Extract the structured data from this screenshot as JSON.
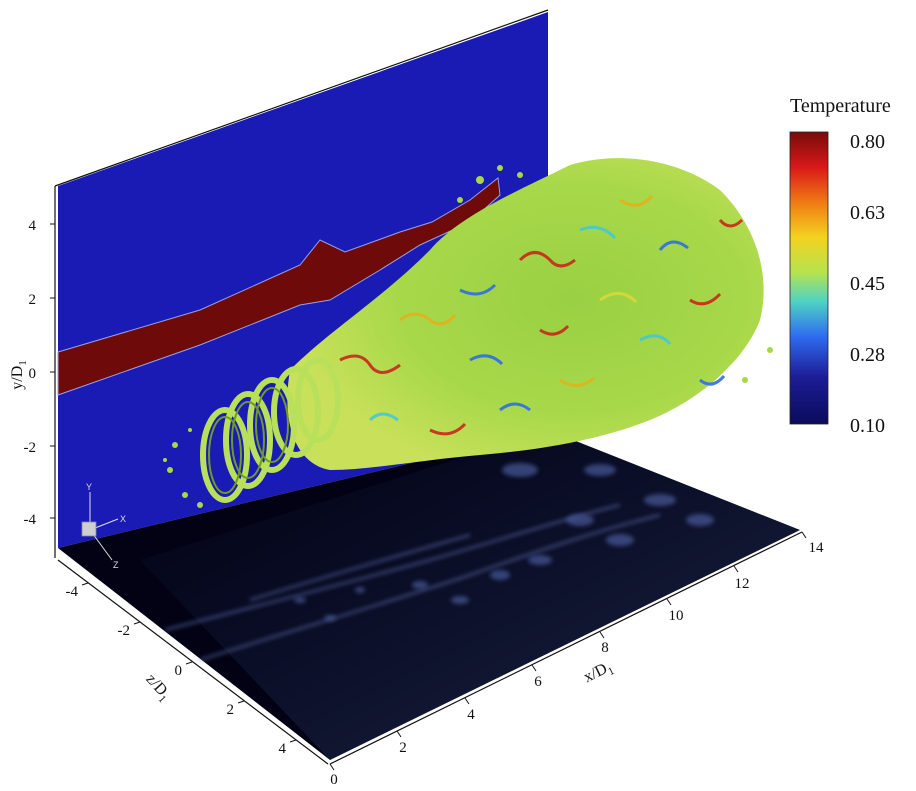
{
  "legend": {
    "title": "Temperature",
    "ticks": [
      "0.80",
      "0.63",
      "0.45",
      "0.28",
      "0.10"
    ],
    "colors": [
      "#7a0b0b",
      "#d81818",
      "#f07a14",
      "#f3d21f",
      "#b7e34d",
      "#4fd3c4",
      "#2e6cf0",
      "#1c1c96",
      "#0b0b5c"
    ]
  },
  "axes": {
    "y": {
      "ticks": [
        "4",
        "2",
        "0",
        "-2",
        "-4"
      ],
      "label": "y/D",
      "label_sub": "1"
    },
    "z": {
      "ticks": [
        "-4",
        "-2",
        "0",
        "2",
        "4"
      ],
      "label": "z/D",
      "label_sub": "1"
    },
    "x": {
      "ticks": [
        "0",
        "2",
        "4",
        "6",
        "8",
        "10",
        "12",
        "14"
      ],
      "label": "x/D",
      "label_sub": "1"
    }
  },
  "triad": {
    "x": "X",
    "y": "Y",
    "z": "Z"
  },
  "colors": {
    "wall_plane": "#1a1ab4",
    "floor_plane": "#020214",
    "hot_jet": "#6e0a0a",
    "vortex_green": "#b9e05a"
  }
}
